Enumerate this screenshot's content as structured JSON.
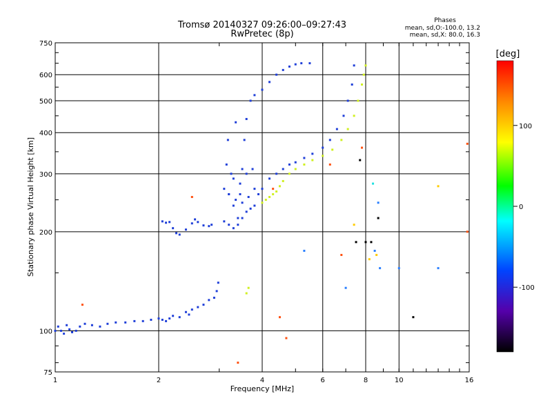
{
  "header": {
    "title_line1": "Tromsø 20140327 09:26:00–09:27:43",
    "title_line2": "RwPretec (8p)",
    "info_label": "Phases",
    "info_o": "mean, sd,O:-100.0, 13.2",
    "info_x": "mean, sd,X:  80.0, 16.3"
  },
  "chart_data": {
    "type": "scatter",
    "xlabel": "Frequency [MHz]",
    "ylabel": "Stationary phase Virtual Height [km]",
    "x_scale": "log",
    "y_scale": "log",
    "xlim": [
      1,
      16
    ],
    "ylim": [
      75,
      750
    ],
    "x_ticks": [
      1,
      2,
      4,
      6,
      8,
      10,
      16
    ],
    "y_ticks": [
      75,
      100,
      200,
      300,
      400,
      500,
      600,
      750
    ],
    "grid": true,
    "colorbar": {
      "label": "[deg]",
      "range": [
        -180,
        180
      ],
      "ticks": [
        100,
        0,
        -100
      ],
      "colors": [
        "#ff0000",
        "#ff8800",
        "#ffff00",
        "#00ff00",
        "#00ffff",
        "#0044ff",
        "#5500aa",
        "#000000"
      ]
    },
    "series": [
      {
        "color": "#1f3fd8",
        "points": [
          [
            1.0,
            100
          ],
          [
            1.02,
            103
          ],
          [
            1.04,
            100
          ],
          [
            1.06,
            98
          ],
          [
            1.08,
            104
          ],
          [
            1.1,
            101
          ],
          [
            1.12,
            99
          ],
          [
            1.15,
            100
          ],
          [
            1.18,
            103
          ],
          [
            1.22,
            105
          ],
          [
            1.28,
            104
          ],
          [
            1.35,
            103
          ],
          [
            1.42,
            105
          ],
          [
            1.5,
            106
          ],
          [
            1.6,
            106
          ],
          [
            1.7,
            107
          ],
          [
            1.8,
            107
          ],
          [
            1.9,
            108
          ],
          [
            2.0,
            109
          ],
          [
            2.05,
            108
          ],
          [
            2.1,
            107
          ],
          [
            2.15,
            109
          ],
          [
            2.2,
            111
          ],
          [
            2.3,
            110
          ],
          [
            2.4,
            114
          ],
          [
            2.45,
            112
          ],
          [
            2.5,
            116
          ],
          [
            2.6,
            118
          ],
          [
            2.7,
            120
          ],
          [
            2.8,
            124
          ],
          [
            2.9,
            126
          ],
          [
            2.95,
            132
          ],
          [
            2.98,
            140
          ],
          [
            2.05,
            215
          ],
          [
            2.1,
            213
          ],
          [
            2.15,
            214
          ],
          [
            2.2,
            205
          ],
          [
            2.25,
            198
          ],
          [
            2.3,
            196
          ],
          [
            2.4,
            203
          ],
          [
            2.5,
            212
          ],
          [
            2.55,
            218
          ],
          [
            2.6,
            214
          ],
          [
            2.7,
            209
          ],
          [
            2.8,
            208
          ],
          [
            2.85,
            210
          ],
          [
            3.1,
            270
          ],
          [
            3.15,
            320
          ],
          [
            3.18,
            380
          ],
          [
            3.2,
            260
          ],
          [
            3.25,
            300
          ],
          [
            3.3,
            240
          ],
          [
            3.35,
            430
          ],
          [
            3.4,
            220
          ],
          [
            3.45,
            260
          ],
          [
            3.5,
            310
          ],
          [
            3.55,
            380
          ],
          [
            3.6,
            440
          ],
          [
            3.7,
            500
          ],
          [
            3.8,
            520
          ],
          [
            4.0,
            540
          ],
          [
            4.2,
            570
          ],
          [
            4.4,
            600
          ],
          [
            4.6,
            620
          ],
          [
            4.8,
            635
          ],
          [
            5.0,
            645
          ],
          [
            5.2,
            650
          ],
          [
            5.5,
            650
          ],
          [
            3.1,
            215
          ],
          [
            3.2,
            210
          ],
          [
            3.3,
            205
          ],
          [
            3.4,
            210
          ],
          [
            3.5,
            220
          ],
          [
            3.6,
            230
          ],
          [
            3.7,
            235
          ],
          [
            3.8,
            240
          ],
          [
            3.9,
            260
          ],
          [
            4.0,
            270
          ],
          [
            4.2,
            290
          ],
          [
            4.4,
            300
          ],
          [
            4.6,
            310
          ],
          [
            4.8,
            320
          ],
          [
            5.0,
            325
          ],
          [
            5.3,
            335
          ],
          [
            5.6,
            345
          ],
          [
            6.0,
            360
          ],
          [
            6.3,
            380
          ],
          [
            6.6,
            410
          ],
          [
            6.9,
            450
          ],
          [
            7.1,
            500
          ],
          [
            7.3,
            560
          ],
          [
            7.4,
            640
          ],
          [
            3.2,
            260
          ],
          [
            3.35,
            250
          ],
          [
            3.5,
            245
          ],
          [
            3.65,
            255
          ],
          [
            3.8,
            270
          ],
          [
            3.3,
            290
          ],
          [
            3.45,
            280
          ],
          [
            3.6,
            300
          ],
          [
            3.75,
            310
          ]
        ]
      },
      {
        "color": "#d0f020",
        "points": [
          [
            3.6,
            130
          ],
          [
            3.65,
            135
          ],
          [
            4.0,
            245
          ],
          [
            4.1,
            250
          ],
          [
            4.2,
            255
          ],
          [
            4.3,
            260
          ],
          [
            4.4,
            265
          ],
          [
            4.5,
            275
          ],
          [
            4.6,
            285
          ],
          [
            4.8,
            300
          ],
          [
            5.0,
            310
          ],
          [
            5.3,
            320
          ],
          [
            5.6,
            330
          ],
          [
            6.0,
            340
          ],
          [
            6.4,
            355
          ],
          [
            6.8,
            380
          ],
          [
            7.1,
            410
          ],
          [
            7.4,
            450
          ],
          [
            7.6,
            500
          ],
          [
            7.8,
            560
          ],
          [
            7.9,
            600
          ],
          [
            8.0,
            640
          ]
        ]
      },
      {
        "color": "#ff5010",
        "points": [
          [
            1.2,
            120
          ],
          [
            2.5,
            255
          ],
          [
            3.4,
            80
          ],
          [
            4.5,
            110
          ],
          [
            4.7,
            95
          ],
          [
            4.3,
            270
          ],
          [
            6.3,
            320
          ],
          [
            6.8,
            170
          ],
          [
            7.8,
            360
          ],
          [
            15.8,
            200
          ],
          [
            15.8,
            370
          ]
        ]
      },
      {
        "color": "#000000",
        "points": [
          [
            7.5,
            186
          ],
          [
            8.0,
            186
          ],
          [
            8.3,
            186
          ],
          [
            8.7,
            220
          ],
          [
            7.7,
            330
          ],
          [
            11.0,
            110
          ]
        ]
      },
      {
        "color": "#2a7fff",
        "points": [
          [
            5.3,
            175
          ],
          [
            7.0,
            135
          ],
          [
            8.5,
            175
          ],
          [
            8.8,
            155
          ],
          [
            8.7,
            245
          ],
          [
            10.0,
            155
          ],
          [
            13.0,
            155
          ]
        ]
      },
      {
        "color": "#ffcc00",
        "points": [
          [
            7.4,
            210
          ],
          [
            8.2,
            165
          ],
          [
            8.6,
            170
          ],
          [
            13.0,
            275
          ]
        ]
      },
      {
        "color": "#20e0e0",
        "points": [
          [
            8.4,
            280
          ]
        ]
      }
    ]
  }
}
